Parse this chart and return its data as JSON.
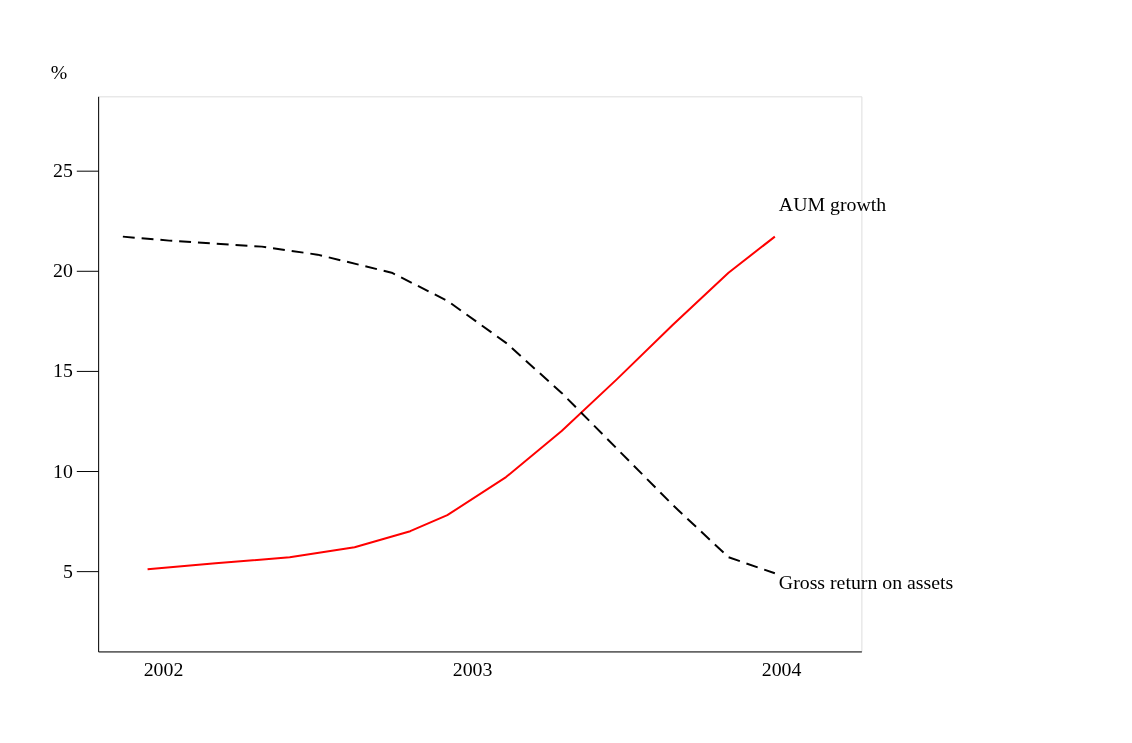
{
  "chart_data": {
    "type": "line",
    "ylabel": "%",
    "xlim": [
      2001.79,
      2004.26
    ],
    "xticks": [
      2002,
      2003,
      2004
    ],
    "ylim": [
      1,
      28.7
    ],
    "yticks": [
      5,
      10,
      15,
      20,
      25
    ],
    "grid": false,
    "legend": false,
    "marker": "none",
    "series": [
      {
        "name": "AUM growth",
        "color": "#ff0000",
        "line_style": "solid",
        "x": [
          2001.95,
          2002.17,
          2002.41,
          2002.62,
          2002.8,
          2002.92,
          2003.11,
          2003.29,
          2003.47,
          2003.65,
          2003.83,
          2003.98
        ],
        "values": [
          5.1,
          5.4,
          5.7,
          6.2,
          7.0,
          7.8,
          9.7,
          12.0,
          14.6,
          17.3,
          19.9,
          21.7
        ]
      },
      {
        "name": "Gross return on assets",
        "color": "#000000",
        "line_style": "dashed",
        "x": [
          2001.87,
          2002.02,
          2002.32,
          2002.5,
          2002.74,
          2002.92,
          2003.11,
          2003.29,
          2003.47,
          2003.65,
          2003.83,
          2003.98
        ],
        "values": [
          21.7,
          21.5,
          21.2,
          20.8,
          19.9,
          18.5,
          16.4,
          13.9,
          11.1,
          8.3,
          5.7,
          4.9
        ]
      }
    ]
  }
}
